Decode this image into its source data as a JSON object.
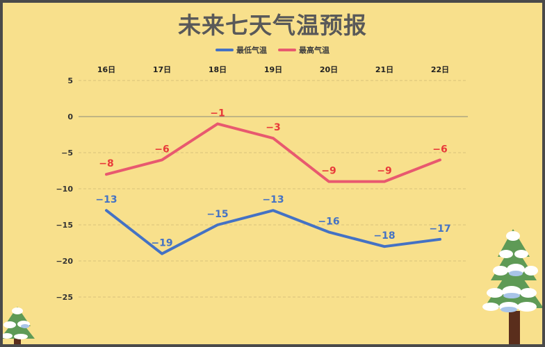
{
  "chart_data": {
    "type": "line",
    "title": "未来七天气温预报",
    "categories": [
      "16日",
      "17日",
      "18日",
      "19日",
      "20日",
      "21日",
      "22日"
    ],
    "series": [
      {
        "name": "最低气温",
        "color": "#4472c4",
        "label_color": "#4472c4",
        "values": [
          -13,
          -19,
          -15,
          -13,
          -16,
          -18,
          -17
        ]
      },
      {
        "name": "最高气温",
        "color": "#e8596f",
        "label_color": "#e83a3a",
        "values": [
          -8,
          -6,
          -1,
          -3,
          -9,
          -9,
          -6
        ]
      }
    ],
    "yticks": [
      5,
      0,
      -5,
      -10,
      -15,
      -20,
      -25
    ],
    "ylim": [
      -28,
      5
    ],
    "xaxis_position": "top",
    "legend_position": "top-center",
    "grid": "dashed horizontal",
    "colors": {
      "background": "#f8e08c",
      "frame": "#4a4a4a",
      "title": "#595959"
    }
  }
}
